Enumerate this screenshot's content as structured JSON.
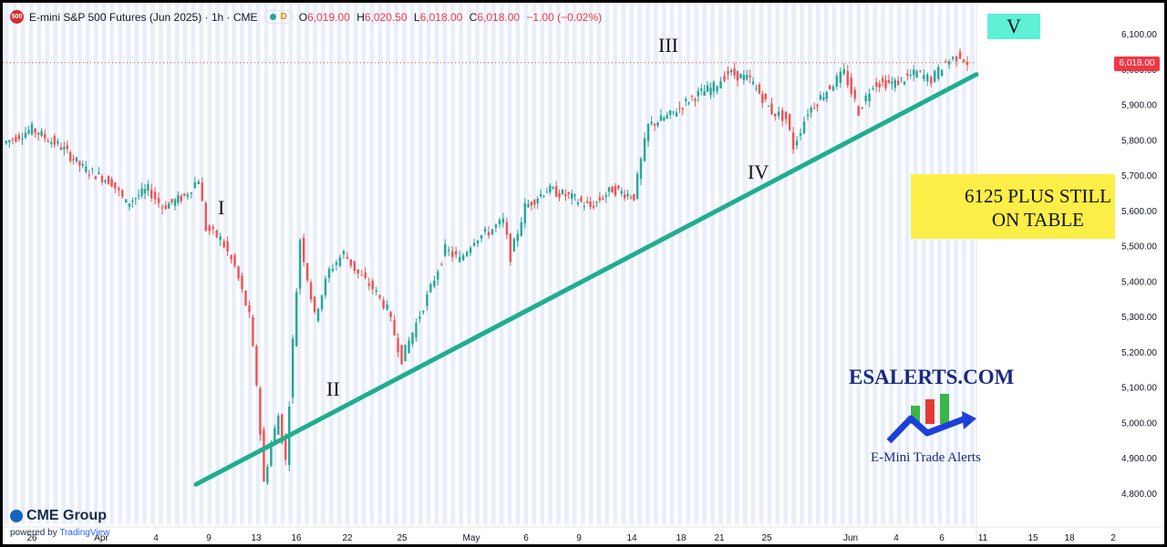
{
  "header": {
    "symbol_badge": "500",
    "title": "E-mini S&P 500 Futures (Jun 2025) · 1h · CME",
    "d_badge": "D",
    "ohlc": [
      {
        "label": "O",
        "value": "6,019.00"
      },
      {
        "label": "H",
        "value": "6,020.50"
      },
      {
        "label": "L",
        "value": "6,018.00"
      },
      {
        "label": "C",
        "value": "6,018.00"
      }
    ],
    "change": "−1.00 (−0.02%)"
  },
  "branding": {
    "cme": "CME Group",
    "powered_by": "powered by",
    "tradingview": "TradingView"
  },
  "chart_data": {
    "type": "line",
    "x_tick_labels": [
      "26",
      "Apr",
      "4",
      "9",
      "13",
      "16",
      "22",
      "25",
      "May",
      "6",
      "9",
      "14",
      "18",
      "21",
      "25",
      "Jun",
      "4",
      "6",
      "11",
      "15",
      "18",
      "2"
    ],
    "y_tick_labels": [
      "6,100.00",
      "6,000.00",
      "5,900.00",
      "5,800.00",
      "5,700.00",
      "5,600.00",
      "5,500.00",
      "5,400.00",
      "5,300.00",
      "5,200.00",
      "5,100.00",
      "5,000.00",
      "4,900.00",
      "4,800.00"
    ],
    "ylim": [
      4760,
      6135
    ],
    "last_price": "6,018.00",
    "last_price_value": 6018,
    "price_path": [
      [
        0,
        5790
      ],
      [
        4,
        5830
      ],
      [
        8,
        5780
      ],
      [
        11,
        5720
      ],
      [
        15,
        5680
      ],
      [
        17,
        5620
      ],
      [
        20,
        5660
      ],
      [
        22,
        5610
      ],
      [
        25,
        5640
      ],
      [
        27,
        5690
      ],
      [
        28,
        5550
      ],
      [
        30,
        5520
      ],
      [
        32,
        5440
      ],
      [
        34,
        5300
      ],
      [
        35,
        5110
      ],
      [
        36,
        4830
      ],
      [
        37,
        4940
      ],
      [
        38,
        5020
      ],
      [
        39,
        4890
      ],
      [
        40,
        5230
      ],
      [
        41,
        5520
      ],
      [
        43,
        5300
      ],
      [
        45,
        5430
      ],
      [
        47,
        5480
      ],
      [
        49,
        5420
      ],
      [
        51,
        5380
      ],
      [
        53,
        5320
      ],
      [
        55,
        5180
      ],
      [
        57,
        5280
      ],
      [
        59,
        5380
      ],
      [
        61,
        5490
      ],
      [
        63,
        5460
      ],
      [
        65,
        5520
      ],
      [
        67,
        5540
      ],
      [
        69,
        5570
      ],
      [
        70,
        5470
      ],
      [
        72,
        5610
      ],
      [
        75,
        5660
      ],
      [
        78,
        5640
      ],
      [
        81,
        5610
      ],
      [
        84,
        5660
      ],
      [
        87,
        5640
      ],
      [
        89,
        5840
      ],
      [
        92,
        5870
      ],
      [
        95,
        5920
      ],
      [
        98,
        5950
      ],
      [
        100,
        5990
      ],
      [
        103,
        5970
      ],
      [
        106,
        5880
      ],
      [
        108,
        5860
      ],
      [
        109,
        5780
      ],
      [
        111,
        5880
      ],
      [
        114,
        5950
      ],
      [
        116,
        5990
      ],
      [
        118,
        5880
      ],
      [
        120,
        5960
      ],
      [
        123,
        5960
      ],
      [
        126,
        5990
      ],
      [
        128,
        5970
      ],
      [
        130,
        6020
      ],
      [
        132,
        6040
      ],
      [
        133,
        6018
      ]
    ],
    "wave_labels": [
      "I",
      "II",
      "III",
      "IV",
      "V"
    ]
  },
  "annotations": {
    "target_line1": "6125 PLUS STILL",
    "target_line2": "ON TABLE",
    "brand": "ESALERTS.COM",
    "tagline": "E-Mini Trade Alerts"
  },
  "colors": {
    "up": "#26a69a",
    "down": "#ef5350",
    "trendline": "#1fae8f",
    "session_band": "#e8eefb"
  }
}
